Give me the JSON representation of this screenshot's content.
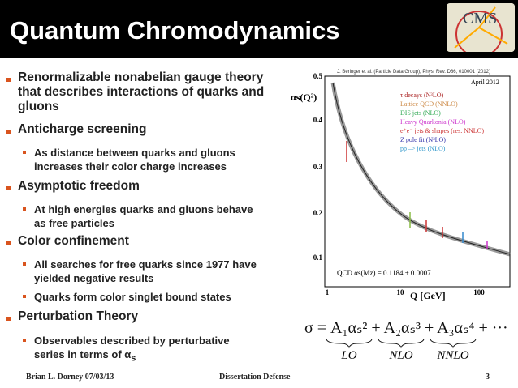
{
  "header": {
    "title": "Quantum Chromodynamics",
    "logo": "CMS"
  },
  "bullets": [
    {
      "text": "Renormalizable nonabelian gauge theory that describes interactions of quarks and gluons",
      "sub": []
    },
    {
      "text": "Anticharge screening",
      "sub": [
        {
          "text": "As distance between quarks and gluons increases their color charge increases"
        }
      ]
    },
    {
      "text": "Asymptotic freedom",
      "sub": [
        {
          "text": "At high energies quarks and gluons behave as free particles"
        }
      ]
    },
    {
      "text": "Color confinement",
      "sub": [
        {
          "text": "All searches for free quarks since 1977 have yielded negative results"
        },
        {
          "text": "Quarks form color singlet bound states"
        }
      ]
    },
    {
      "text": "Perturbation Theory",
      "sub": [
        {
          "text": "Observables described by perturbative series in terms of α",
          "subscript": "s"
        }
      ]
    }
  ],
  "figure": {
    "citation": "J. Beringer et al. (Particle Data Group), Phys. Rev. D86, 010001 (2012)",
    "date": "April 2012",
    "y_label": "αs(Q²)",
    "x_label": "Q [GeV]",
    "yticks": [
      "0.1",
      "0.2",
      "0.3",
      "0.4",
      "0.5"
    ],
    "xticks": [
      "1",
      "10",
      "100"
    ],
    "legend": [
      "τ decays (N³LO)",
      "Lattice QCD (NNLO)",
      "DIS jets (NLO)",
      "Heavy Quarkonia (NLO)",
      "e⁺e⁻ jets & shapes (res. NNLO)",
      "Z pole fit (N³LO)",
      "pp̄ –> jets (NLO)"
    ],
    "fit": "QCD   αs(Mz) = 0.1184 ± 0.0007"
  },
  "formula": {
    "text": "σ = A₁αₛ² + A₂αₛ³ + A₃αₛ⁴ + ···",
    "braces": [
      "LO",
      "NLO",
      "NNLO"
    ]
  },
  "footer": {
    "author": "Brian L. Dorney 07/03/13",
    "event": "Dissertation Defense",
    "page": "3"
  }
}
